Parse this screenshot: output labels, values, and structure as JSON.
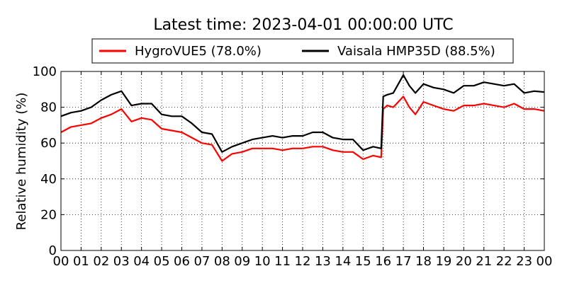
{
  "chart_data": {
    "type": "line",
    "title": "Latest time: 2023-04-01 00:00:00 UTC",
    "ylabel": "Relative humidity (%)",
    "xlabel": "",
    "xlim": [
      0,
      24
    ],
    "ylim": [
      0,
      100
    ],
    "grid": true,
    "legend": "top-center",
    "x_tick_labels": [
      "00",
      "01",
      "02",
      "03",
      "04",
      "05",
      "06",
      "07",
      "08",
      "09",
      "10",
      "11",
      "12",
      "13",
      "14",
      "15",
      "16",
      "17",
      "18",
      "19",
      "20",
      "21",
      "22",
      "23",
      "00"
    ],
    "y_ticks": [
      0,
      20,
      40,
      60,
      80,
      100
    ],
    "x": [
      0,
      0.5,
      1,
      1.5,
      2,
      2.5,
      3,
      3.5,
      4,
      4.5,
      5,
      5.5,
      6,
      6.5,
      7,
      7.5,
      8,
      8.5,
      9,
      9.5,
      10,
      10.5,
      11,
      11.5,
      12,
      12.5,
      13,
      13.5,
      14,
      14.5,
      15,
      15.5,
      15.9,
      16,
      16.2,
      16.5,
      17,
      17.3,
      17.6,
      18,
      18.5,
      19,
      19.5,
      20,
      20.5,
      21,
      21.5,
      22,
      22.5,
      23,
      23.5,
      24
    ],
    "series": [
      {
        "name": "HygroVUE5 (78.0%)",
        "color": "#ff0000",
        "values": [
          66,
          69,
          70,
          71,
          74,
          76,
          79,
          72,
          74,
          73,
          68,
          67,
          66,
          63,
          60,
          59,
          50,
          54,
          55,
          57,
          57,
          57,
          56,
          57,
          57,
          58,
          58,
          56,
          55,
          55,
          51,
          53,
          52,
          79,
          81,
          80,
          86,
          80,
          76,
          83,
          81,
          79,
          78,
          81,
          81,
          82,
          81,
          80,
          82,
          79,
          79,
          78
        ]
      },
      {
        "name": "Vaisala HMP35D (88.5%)",
        "color": "#000000",
        "values": [
          75,
          77,
          78,
          80,
          84,
          87,
          89,
          81,
          82,
          82,
          76,
          75,
          75,
          71,
          66,
          65,
          55,
          58,
          60,
          62,
          63,
          64,
          63,
          64,
          64,
          66,
          66,
          63,
          62,
          62,
          56,
          58,
          57,
          86,
          87,
          88,
          98,
          92,
          88,
          93,
          91,
          90,
          88,
          92,
          92,
          94,
          93,
          92,
          93,
          88,
          89,
          88.5
        ]
      }
    ]
  }
}
